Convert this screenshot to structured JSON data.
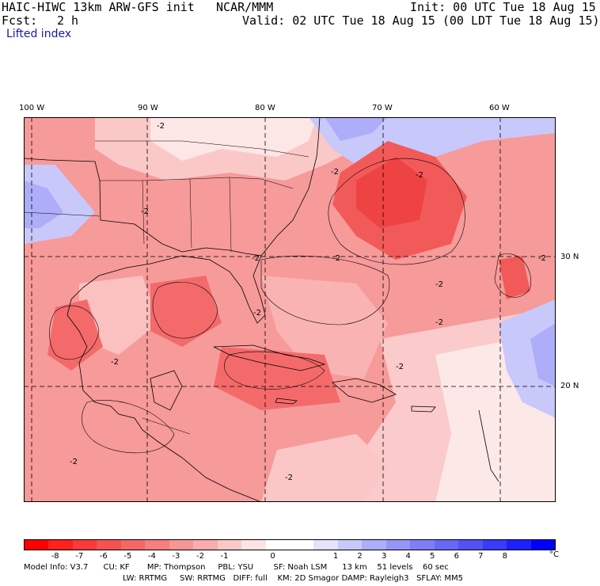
{
  "header": {
    "model": "HAIC-HIWC 13km ARW-GFS init",
    "org": "NCAR/MMM",
    "init": "Init: 00 UTC Tue 18 Aug 15",
    "fcst_label": "Fcst:",
    "fcst_value": "2 h",
    "valid": "Valid: 02 UTC Tue 18 Aug 15 (00 LDT Tue 18 Aug 15)",
    "field": "Lifted index"
  },
  "map": {
    "lon_labels": [
      "100 W",
      "90 W",
      "80 W",
      "70 W",
      "60 W"
    ],
    "lat_labels": [
      "30 N",
      "20 N"
    ],
    "contour_label": "-2"
  },
  "legend": {
    "unit": "°C",
    "ticks": [
      "-8",
      "-7",
      "-6",
      "-5",
      "-4",
      "-3",
      "-2",
      "-1",
      "0",
      "1",
      "2",
      "3",
      "4",
      "5",
      "6",
      "7",
      "8"
    ],
    "colors": [
      "#ff0000",
      "#ff2020",
      "#fa3a3a",
      "#f55252",
      "#f56868",
      "#f57e7e",
      "#f79595",
      "#f9adad",
      "#fbc8c8",
      "#fde3e3",
      "#ffffff",
      "#ffffff",
      "#e3e3fd",
      "#c8c8fb",
      "#adadf9",
      "#9595f7",
      "#7e7ef5",
      "#6868f5",
      "#5252f5",
      "#3a3afa",
      "#2020ff",
      "#0000ff"
    ]
  },
  "footer": {
    "line1": "Model Info: V3.7      CU: KF       MP: Thompson     PBL: YSU        SF: Noah LSM      13 km    51 levels    60 sec",
    "line2": "LW: RRTMG     SW: RRTMG   DIFF: full    KM: 2D Smagor DAMP: Rayleigh3   SFLAY: MM5"
  }
}
